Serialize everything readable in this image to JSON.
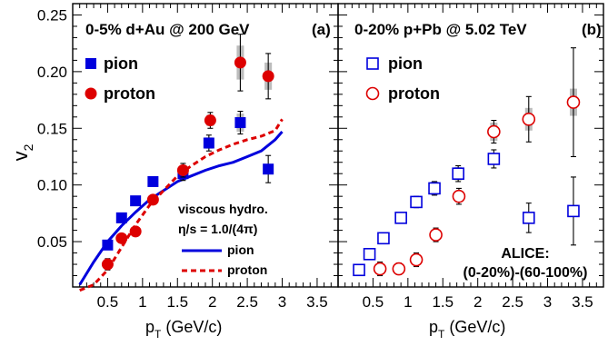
{
  "colors": {
    "blue": "#0000dd",
    "red": "#dd0000",
    "gray_band": "#b0b0b0",
    "axis": "#000000"
  },
  "chart_data": [
    {
      "type": "scatter",
      "panel_title": "0-5% d+Au @ 200 GeV",
      "panel_tag": "(a)",
      "xlabel": "p",
      "xlabel_sub": "T",
      "xlabel_unit": " (GeV/c)",
      "ylabel": "v",
      "ylabel_sub": "2",
      "xlim": [
        0,
        3.8
      ],
      "ylim": [
        0.01,
        0.26
      ],
      "x_ticks": [
        0.5,
        1.0,
        1.5,
        2.0,
        2.5,
        3.0,
        3.5
      ],
      "x_tick_labels": [
        "0.5",
        "1",
        "1.5",
        "2",
        "2.5",
        "3",
        "3.5"
      ],
      "y_ticks": [
        0.05,
        0.1,
        0.15,
        0.2,
        0.25
      ],
      "y_tick_labels": [
        "0.05",
        "0.10",
        "0.15",
        "0.20",
        "0.25"
      ],
      "legend": [
        {
          "label": "pion",
          "marker": "filled-square",
          "color": "blue"
        },
        {
          "label": "proton",
          "marker": "filled-circle",
          "color": "red"
        }
      ],
      "hydro_legend": {
        "title": "viscous hydro.",
        "subtitle": "η/s = 1.0/(4π)",
        "entries": [
          {
            "label": "pion",
            "style": "solid",
            "color": "blue"
          },
          {
            "label": "proton",
            "style": "dashed",
            "color": "red"
          }
        ]
      },
      "series": [
        {
          "name": "pion",
          "marker": "filled-square",
          "color": "blue",
          "points": [
            {
              "x": 0.5,
              "y": 0.047,
              "err": 0.004
            },
            {
              "x": 0.7,
              "y": 0.071,
              "err": 0.004
            },
            {
              "x": 0.9,
              "y": 0.086,
              "err": 0.004
            },
            {
              "x": 1.15,
              "y": 0.103,
              "err": 0.004
            },
            {
              "x": 1.58,
              "y": 0.11,
              "err": 0.006
            },
            {
              "x": 1.95,
              "y": 0.137,
              "err": 0.007,
              "sys": 0.005
            },
            {
              "x": 2.4,
              "y": 0.155,
              "err": 0.01,
              "sys": 0.008
            },
            {
              "x": 2.8,
              "y": 0.114,
              "err": 0.012
            }
          ]
        },
        {
          "name": "proton",
          "marker": "filled-circle",
          "color": "red",
          "points": [
            {
              "x": 0.5,
              "y": 0.03,
              "err": 0.005
            },
            {
              "x": 0.7,
              "y": 0.053,
              "err": 0.004
            },
            {
              "x": 0.9,
              "y": 0.059,
              "err": 0.004
            },
            {
              "x": 1.15,
              "y": 0.087,
              "err": 0.004
            },
            {
              "x": 1.58,
              "y": 0.113,
              "err": 0.006
            },
            {
              "x": 1.97,
              "y": 0.157,
              "err": 0.007,
              "sys": 0.005
            },
            {
              "x": 2.4,
              "y": 0.208,
              "err": 0.025,
              "sys": 0.015
            },
            {
              "x": 2.8,
              "y": 0.196,
              "err": 0.02,
              "sys": 0.012
            }
          ]
        }
      ],
      "curves": [
        {
          "name": "pion",
          "style": "solid",
          "color": "blue",
          "x": [
            0.1,
            0.3,
            0.5,
            0.7,
            0.9,
            1.1,
            1.3,
            1.5,
            1.7,
            1.9,
            2.1,
            2.3,
            2.5,
            2.7,
            2.9,
            3.0
          ],
          "y": [
            0.012,
            0.032,
            0.05,
            0.064,
            0.076,
            0.087,
            0.095,
            0.103,
            0.108,
            0.113,
            0.117,
            0.12,
            0.125,
            0.13,
            0.14,
            0.147
          ]
        },
        {
          "name": "proton",
          "style": "dashed",
          "color": "red",
          "x": [
            0.1,
            0.3,
            0.5,
            0.7,
            0.9,
            1.1,
            1.3,
            1.5,
            1.7,
            1.9,
            2.1,
            2.3,
            2.5,
            2.7,
            2.9,
            3.0
          ],
          "y": [
            0.007,
            0.012,
            0.025,
            0.045,
            0.065,
            0.082,
            0.095,
            0.108,
            0.117,
            0.125,
            0.131,
            0.136,
            0.14,
            0.143,
            0.148,
            0.158
          ]
        }
      ]
    },
    {
      "type": "scatter",
      "panel_title": "0-20% p+Pb @ 5.02 TeV",
      "panel_tag": "(b)",
      "xlabel": "p",
      "xlabel_sub": "T",
      "xlabel_unit": " (GeV/c)",
      "xlim": [
        0,
        3.8
      ],
      "ylim": [
        0.01,
        0.26
      ],
      "x_ticks": [
        0.5,
        1.0,
        1.5,
        2.0,
        2.5,
        3.0,
        3.5
      ],
      "x_tick_labels": [
        "0.5",
        "1",
        "1.5",
        "2",
        "2.5",
        "3",
        "3.5"
      ],
      "legend": [
        {
          "label": "pion",
          "marker": "open-square",
          "color": "blue"
        },
        {
          "label": "proton",
          "marker": "open-circle",
          "color": "red"
        }
      ],
      "annotation": [
        "ALICE:",
        "(0-20%)-(60-100%)"
      ],
      "series": [
        {
          "name": "pion",
          "marker": "open-square",
          "color": "blue",
          "points": [
            {
              "x": 0.3,
              "y": 0.025,
              "err": 0.003
            },
            {
              "x": 0.45,
              "y": 0.039,
              "err": 0.003
            },
            {
              "x": 0.65,
              "y": 0.053,
              "err": 0.003
            },
            {
              "x": 0.9,
              "y": 0.071,
              "err": 0.004,
              "sys": 0.004
            },
            {
              "x": 1.12,
              "y": 0.085,
              "err": 0.005,
              "sys": 0.005
            },
            {
              "x": 1.38,
              "y": 0.097,
              "err": 0.006,
              "sys": 0.006
            },
            {
              "x": 1.72,
              "y": 0.11,
              "err": 0.007,
              "sys": 0.006
            },
            {
              "x": 2.23,
              "y": 0.123,
              "err": 0.008,
              "sys": 0.005
            },
            {
              "x": 2.73,
              "y": 0.071,
              "err": 0.013
            },
            {
              "x": 3.37,
              "y": 0.077,
              "err": 0.03
            }
          ]
        },
        {
          "name": "proton",
          "marker": "open-circle",
          "color": "red",
          "points": [
            {
              "x": 0.6,
              "y": 0.026,
              "err": 0.006,
              "sys": 0.003
            },
            {
              "x": 0.87,
              "y": 0.026,
              "err": 0.005,
              "sys": 0.003
            },
            {
              "x": 1.12,
              "y": 0.034,
              "err": 0.006,
              "sys": 0.003
            },
            {
              "x": 1.4,
              "y": 0.056,
              "err": 0.006,
              "sys": 0.004
            },
            {
              "x": 1.73,
              "y": 0.09,
              "err": 0.007,
              "sys": 0.005
            },
            {
              "x": 2.23,
              "y": 0.147,
              "err": 0.01,
              "sys": 0.008
            },
            {
              "x": 2.73,
              "y": 0.158,
              "err": 0.02,
              "sys": 0.01
            },
            {
              "x": 3.37,
              "y": 0.173,
              "err": 0.048,
              "sys": 0.012
            }
          ]
        }
      ]
    }
  ]
}
